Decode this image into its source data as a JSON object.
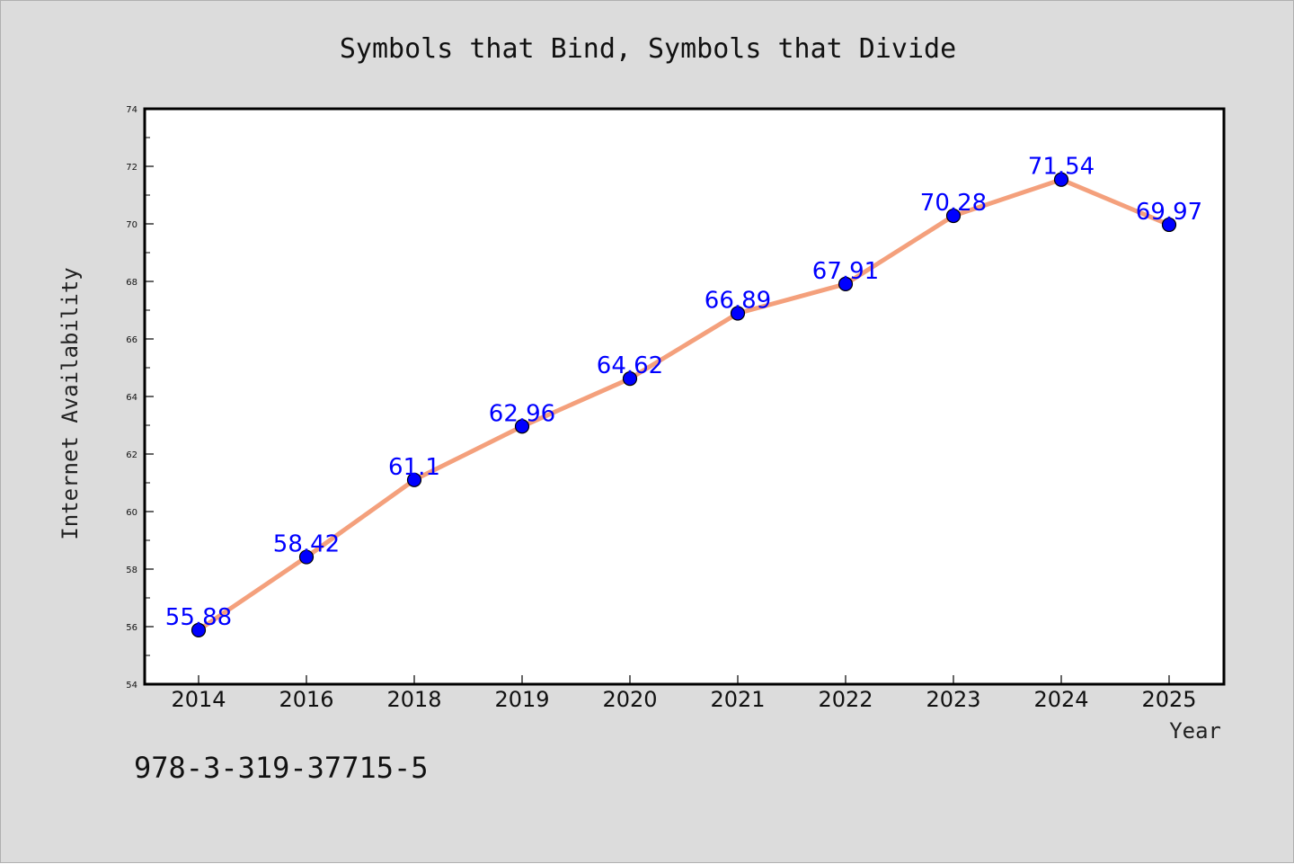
{
  "chart_data": {
    "type": "line",
    "title": "Symbols that Bind, Symbols that Divide",
    "xlabel": "Year",
    "ylabel": "Internet Availability",
    "categories": [
      "2014",
      "2016",
      "2018",
      "2019",
      "2020",
      "2021",
      "2022",
      "2023",
      "2024",
      "2025"
    ],
    "series": [
      {
        "values": [
          55.88,
          58.42,
          61.1,
          62.96,
          64.62,
          66.89,
          67.91,
          70.28,
          71.54,
          69.97
        ],
        "labels": [
          "55.88",
          "58.42",
          "61.1",
          "62.96",
          "64.62",
          "66.89",
          "67.91",
          "70.28",
          "71.54",
          "69.97"
        ],
        "line_color": "#f4a07c",
        "marker_color": "#0000ff"
      }
    ],
    "ylim": [
      54,
      74
    ],
    "yticks": [
      "54",
      "56",
      "58",
      "60",
      "62",
      "64",
      "66",
      "68",
      "70",
      "72",
      "74"
    ],
    "grid": false,
    "legend": "none"
  },
  "footer": {
    "isbn": "978-3-319-37715-5"
  }
}
